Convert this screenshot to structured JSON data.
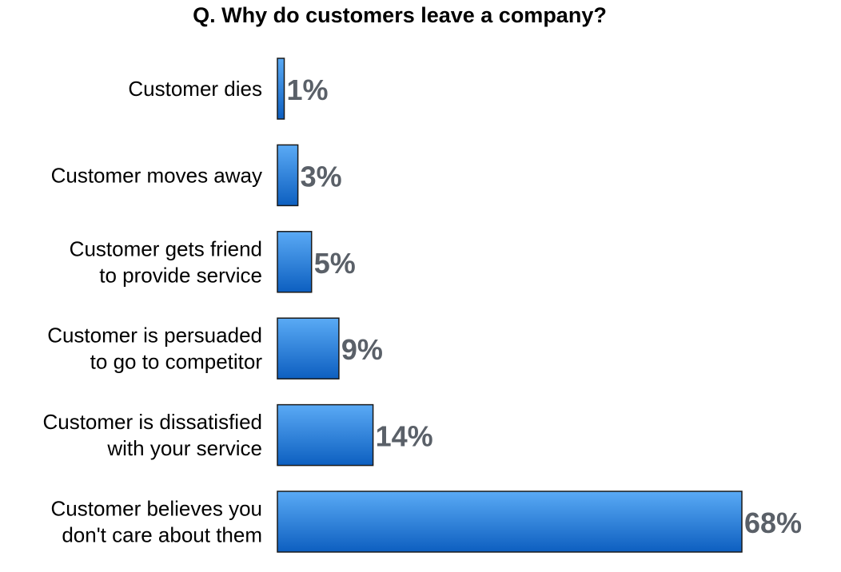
{
  "chart_data": {
    "type": "bar",
    "orientation": "horizontal",
    "title": "Q. Why do customers leave a company?",
    "categories": [
      [
        "Customer dies"
      ],
      [
        "Customer moves away"
      ],
      [
        "Customer gets friend",
        "to provide service"
      ],
      [
        "Customer is persuaded",
        "to go to competitor"
      ],
      [
        "Customer is dissatisfied",
        "with your service"
      ],
      [
        "Customer believes you",
        "don't care about them"
      ]
    ],
    "values": [
      1,
      3,
      5,
      9,
      14,
      68
    ],
    "value_labels": [
      "1%",
      "3%",
      "5%",
      "9%",
      "14%",
      "68%"
    ],
    "xlim": [
      0,
      70
    ],
    "grid": false,
    "legend": "none",
    "colors": {
      "bar_top": "#5aaaf5",
      "bar_bottom": "#0d5fc0",
      "bar_stroke": "#1a1a1a",
      "value_label": "#5a6068",
      "category_label": "#000000"
    }
  }
}
